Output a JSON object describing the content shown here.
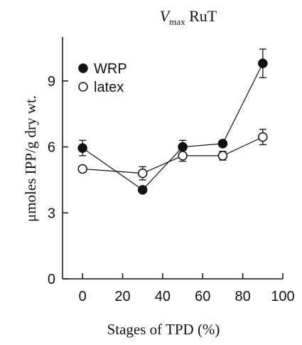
{
  "chart_data": {
    "type": "line",
    "title": {
      "main": "V",
      "sub": "max",
      "rest": " RuT"
    },
    "xlabel": "Stages of TPD (%)",
    "ylabel": "μmoles IPP/g dry wt.",
    "xlim": [
      -10,
      100
    ],
    "ylim": [
      0,
      11
    ],
    "xticks": [
      0,
      20,
      40,
      60,
      80,
      100
    ],
    "yticks": [
      0,
      3,
      6,
      9
    ],
    "grid": false,
    "legend_position": "top-left",
    "series": [
      {
        "name": "WRP",
        "marker": "filled-circle",
        "color": "#111111",
        "x": [
          0,
          30,
          50,
          70,
          90
        ],
        "y": [
          5.95,
          4.05,
          6.0,
          6.15,
          9.8
        ],
        "err": [
          0.35,
          0.0,
          0.3,
          0.0,
          0.65
        ]
      },
      {
        "name": "latex",
        "marker": "open-circle",
        "color": "#111111",
        "x": [
          0,
          30,
          50,
          70,
          90
        ],
        "y": [
          5.0,
          4.8,
          5.6,
          5.6,
          6.45
        ],
        "err": [
          0.0,
          0.3,
          0.25,
          0.2,
          0.35
        ]
      }
    ]
  }
}
